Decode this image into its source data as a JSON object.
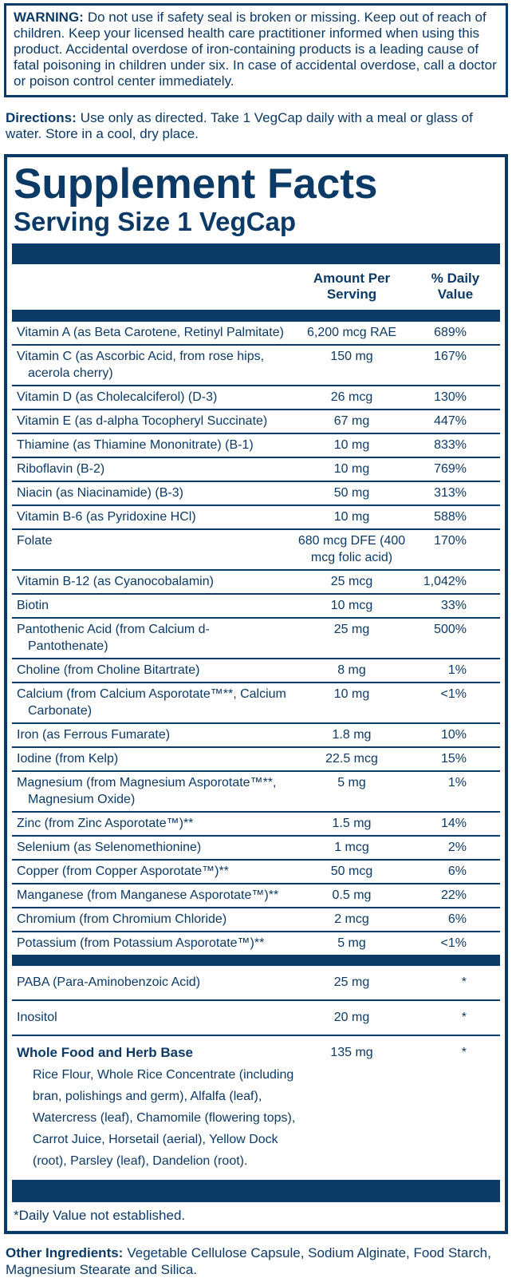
{
  "colors": {
    "navy": "#0c3a67"
  },
  "warning": {
    "label": "WARNING:",
    "text": "Do not use if safety seal is broken or missing. Keep out of reach of children. Keep your licensed health care practitioner informed when using this product. Accidental overdose of iron-containing products is a leading cause of fatal poisoning in children under six. In case of accidental overdose, call a doctor or poison control center immediately."
  },
  "directions": {
    "label": "Directions:",
    "text": "Use only as directed. Take 1 VegCap daily with a meal or glass of water. Store in a cool, dry place."
  },
  "panel": {
    "title": "Supplement Facts",
    "serving_size": "Serving Size 1 VegCap",
    "columns": {
      "amount_line1": "Amount Per",
      "amount_line2": "Serving",
      "dv_line1": "% Daily",
      "dv_line2": "Value"
    },
    "main_rows": [
      {
        "name": "Vitamin A (as Beta Carotene, Retinyl Palmitate)",
        "amount": "6,200 mcg RAE",
        "dv": "689%"
      },
      {
        "name": "Vitamin C (as Ascorbic Acid, from rose hips, acerola cherry)",
        "amount": "150 mg",
        "dv": "167%"
      },
      {
        "name": "Vitamin D (as Cholecalciferol) (D-3)",
        "amount": "26 mcg",
        "dv": "130%"
      },
      {
        "name": "Vitamin E (as d-alpha Tocopheryl Succinate)",
        "amount": "67 mg",
        "dv": "447%"
      },
      {
        "name": "Thiamine (as Thiamine Mononitrate) (B-1)",
        "amount": "10 mg",
        "dv": "833%"
      },
      {
        "name": "Riboflavin (B-2)",
        "amount": "10 mg",
        "dv": "769%"
      },
      {
        "name": "Niacin (as Niacinamide) (B-3)",
        "amount": "50 mg",
        "dv": "313%"
      },
      {
        "name": "Vitamin B-6 (as Pyridoxine HCl)",
        "amount": "10 mg",
        "dv": "588%"
      },
      {
        "name": "Folate",
        "amount": "680 mcg DFE (400 mcg folic acid)",
        "dv": "170%"
      },
      {
        "name": "Vitamin B-12 (as Cyanocobalamin)",
        "amount": "25 mcg",
        "dv": "1,042%"
      },
      {
        "name": "Biotin",
        "amount": "10 mcg",
        "dv": "33%"
      },
      {
        "name": "Pantothenic Acid (from Calcium d-Pantothenate)",
        "amount": "25 mg",
        "dv": "500%"
      },
      {
        "name": "Choline (from Choline Bitartrate)",
        "amount": "8 mg",
        "dv": "1%"
      },
      {
        "name": "Calcium (from Calcium Asporotate™**, Calcium Carbonate)",
        "amount": "10 mg",
        "dv": "<1%"
      },
      {
        "name": "Iron (as Ferrous Fumarate)",
        "amount": "1.8 mg",
        "dv": "10%"
      },
      {
        "name": "Iodine (from Kelp)",
        "amount": "22.5 mcg",
        "dv": "15%"
      },
      {
        "name": "Magnesium (from Magnesium Asporotate™**, Magnesium Oxide)",
        "amount": "5 mg",
        "dv": "1%"
      },
      {
        "name": "Zinc (from Zinc Asporotate™)**",
        "amount": "1.5 mg",
        "dv": "14%"
      },
      {
        "name": "Selenium (as Selenomethionine)",
        "amount": "1 mcg",
        "dv": "2%"
      },
      {
        "name": "Copper (from Copper Asporotate™)**",
        "amount": "50 mcg",
        "dv": "6%"
      },
      {
        "name": "Manganese (from Manganese Asporotate™)**",
        "amount": "0.5 mg",
        "dv": "22%"
      },
      {
        "name": "Chromium (from Chromium Chloride)",
        "amount": "2 mcg",
        "dv": "6%"
      },
      {
        "name": "Potassium (from Potassium Asporotate™)**",
        "amount": "5 mg",
        "dv": "<1%"
      }
    ],
    "extra_rows": [
      {
        "name": "PABA (Para-Aminobenzoic Acid)",
        "amount": "25 mg",
        "dv": "*"
      },
      {
        "name": "Inositol",
        "amount": "20 mg",
        "dv": "*"
      }
    ],
    "herb_base": {
      "name": "Whole Food and Herb Base",
      "amount": "135 mg",
      "dv": "*",
      "ingredients": "Rice Flour, Whole Rice Concentrate (including bran, polishings and germ), Alfalfa (leaf), Watercress (leaf), Chamomile (flowering tops), Carrot Juice, Horsetail (aerial), Yellow Dock (root), Parsley (leaf), Dandelion (root)."
    },
    "footnote": "*Daily Value not established."
  },
  "other_ingredients": {
    "label": "Other Ingredients:",
    "text": "Vegetable Cellulose Capsule, Sodium Alginate, Food Starch, Magnesium Stearate and Silica."
  }
}
